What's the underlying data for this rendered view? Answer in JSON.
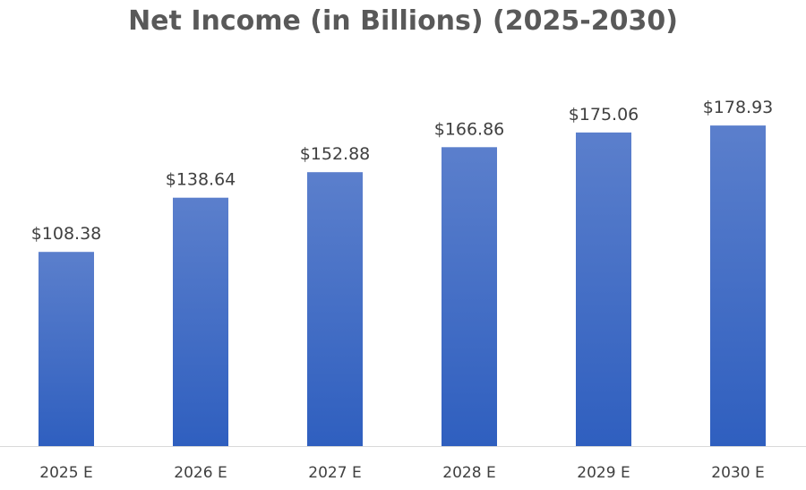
{
  "chart_data": {
    "type": "bar",
    "title": "Net Income (in Billions) (2025-2030)",
    "categories": [
      "2025 E",
      "2026 E",
      "2027 E",
      "2028 E",
      "2029 E",
      "2030 E"
    ],
    "values": [
      108.38,
      138.64,
      152.88,
      166.86,
      175.06,
      178.93
    ],
    "data_labels": [
      "$108.38",
      "$138.64",
      "$152.88",
      "$166.86",
      "$175.06",
      "$178.93"
    ],
    "xlabel": "",
    "ylabel": "",
    "ylim": [
      0,
      200
    ],
    "grid": false,
    "legend": "none",
    "bar_color_top": "#5b7fcc",
    "bar_color_bottom": "#2f5fbf",
    "axis_color": "#d9d9d9"
  }
}
